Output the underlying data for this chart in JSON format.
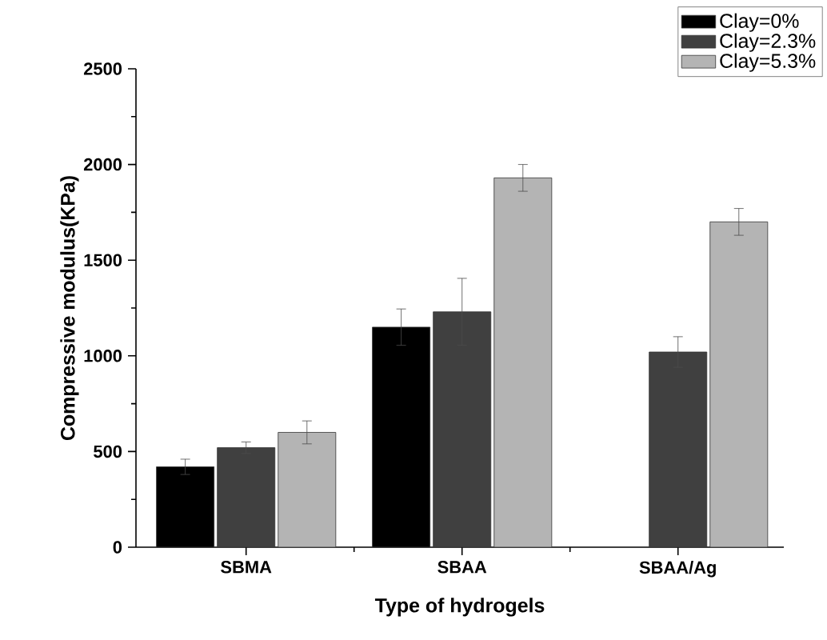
{
  "chart_data": {
    "type": "bar",
    "xlabel": "Type of hydrogels",
    "ylabel": "Compressive modulus(KPa)",
    "categories": [
      "SBMA",
      "SBAA",
      "SBAA/Ag"
    ],
    "series": [
      {
        "name": "Clay=0%",
        "color": "#000000",
        "values": [
          420,
          1150,
          null
        ],
        "errors": [
          40,
          95,
          null
        ]
      },
      {
        "name": "Clay=2.3%",
        "color": "#404040",
        "values": [
          520,
          1230,
          1020
        ],
        "errors": [
          30,
          175,
          80
        ]
      },
      {
        "name": "Clay=5.3%",
        "color": "#b4b4b4",
        "values": [
          600,
          1930,
          1700
        ],
        "errors": [
          60,
          70,
          70
        ]
      }
    ],
    "ylim": [
      0,
      2500
    ],
    "yticks": [
      0,
      500,
      1000,
      1500,
      2000,
      2500
    ],
    "legend": "top right"
  }
}
